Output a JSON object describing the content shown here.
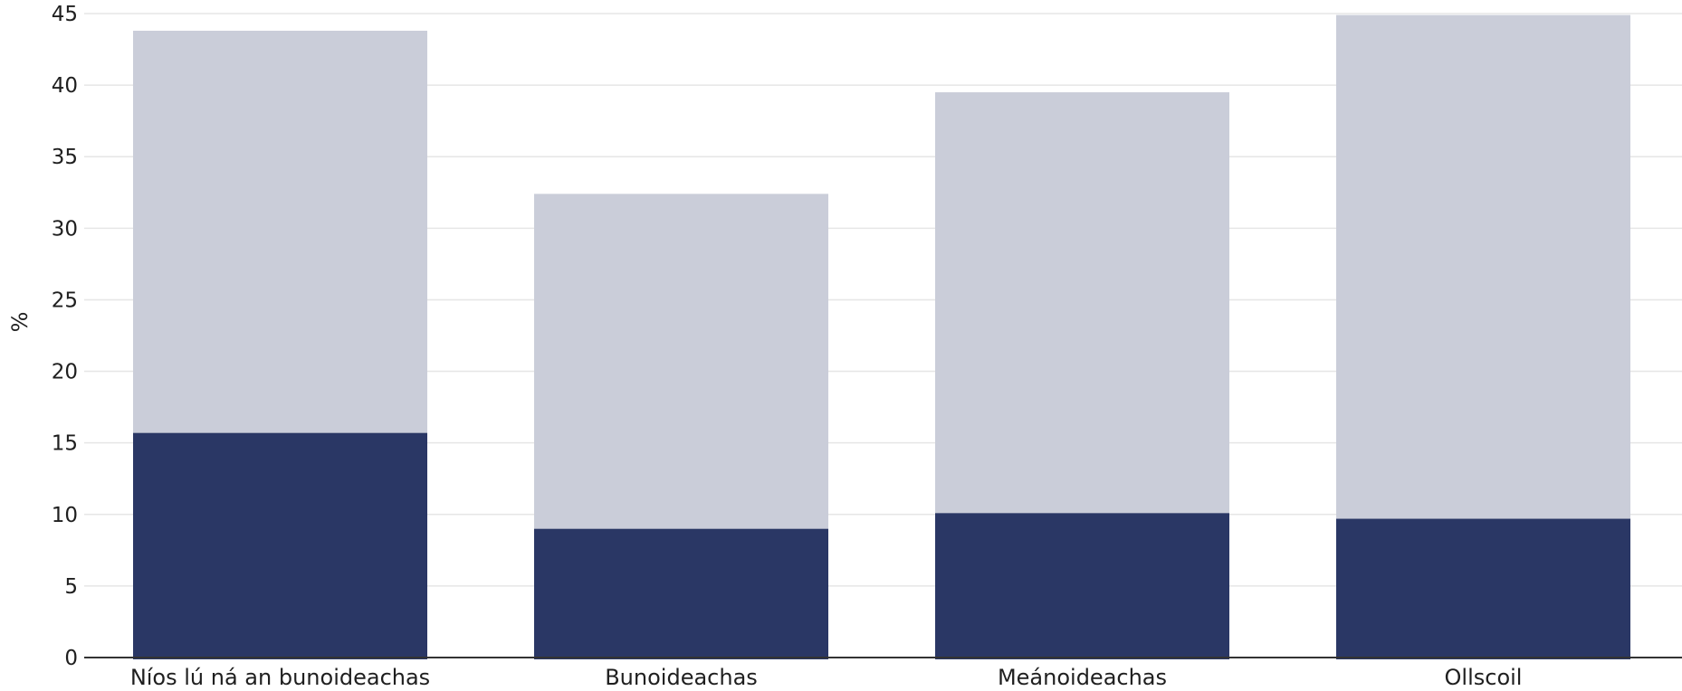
{
  "chart_data": {
    "type": "bar",
    "stacked": true,
    "categories": [
      "Níos lú ná an bunoideachas",
      "Bunoideachas",
      "Meánoideachas",
      "Ollscoil"
    ],
    "series": [
      {
        "values": [
          15.7,
          9.0,
          10.1,
          9.7
        ],
        "color": "#2a3765"
      },
      {
        "values": [
          28.1,
          23.4,
          29.4,
          35.2
        ],
        "color": "#cacdd9"
      }
    ],
    "title": "",
    "xlabel": "",
    "ylabel": "%",
    "ylim": [
      0,
      45
    ],
    "yticks": [
      0,
      5,
      10,
      15,
      20,
      25,
      30,
      35,
      40,
      45
    ],
    "grid": true,
    "legend": "none"
  }
}
